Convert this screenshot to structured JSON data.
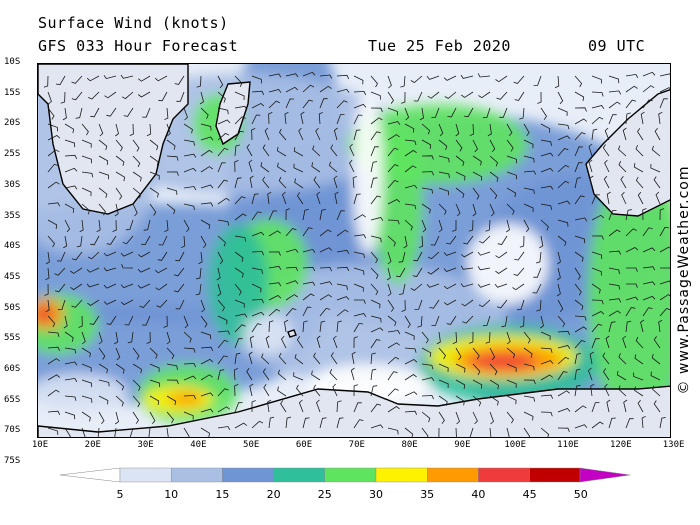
{
  "header": {
    "title": "Surface Wind (knots)",
    "subtitle": "GFS 033 Hour Forecast",
    "date": "Tue 25 Feb 2020",
    "time": "09 UTC"
  },
  "credit": "© www.PassageWeather.com",
  "lat_labels": [
    "10S",
    "15S",
    "20S",
    "25S",
    "30S",
    "35S",
    "40S",
    "45S",
    "50S",
    "55S",
    "60S",
    "65S",
    "70S",
    "75S"
  ],
  "lon_labels": [
    "10E",
    "20E",
    "30E",
    "40E",
    "50E",
    "60E",
    "70E",
    "80E",
    "90E",
    "100E",
    "110E",
    "120E",
    "130E"
  ],
  "legend": {
    "labels": [
      "5",
      "10",
      "15",
      "20",
      "25",
      "30",
      "35",
      "40",
      "45",
      "50"
    ],
    "colors": [
      "#ffffff",
      "#dbe4f4",
      "#a9bfe4",
      "#6f95d4",
      "#2fbf9a",
      "#5fe45f",
      "#fff200",
      "#ff9a00",
      "#ef3b3b",
      "#c00000",
      "#c400c4"
    ]
  },
  "map_colors": {
    "land": "#e2e6f1",
    "coast": "#000000"
  }
}
